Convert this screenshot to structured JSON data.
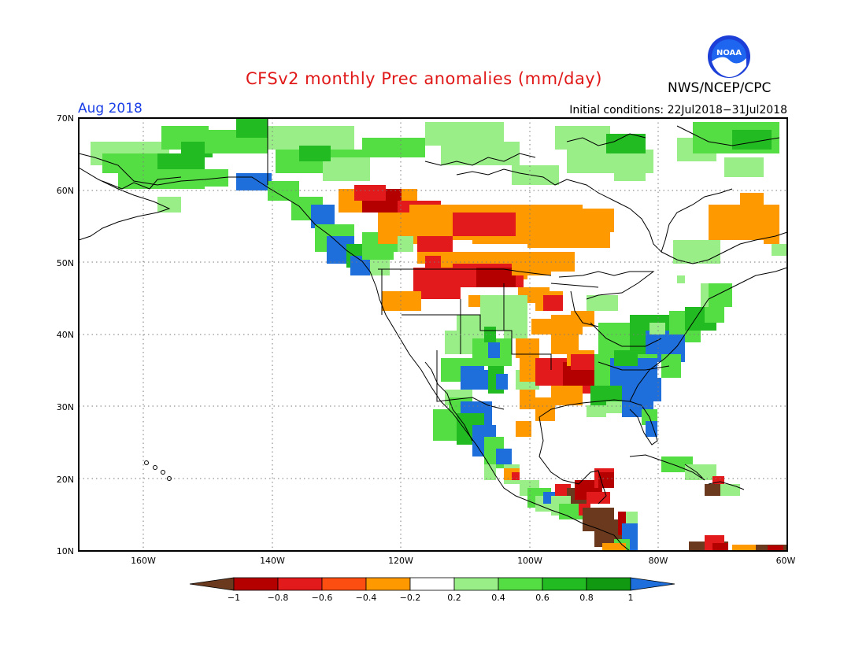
{
  "header": {
    "title": "CFSv2 monthly Prec anomalies (mm/day)",
    "agency": "NWS/NCEP/CPC",
    "month": "Aug 2018",
    "initial_conditions": "Initial conditions: 22Jul2018−31Jul2018",
    "logo_text": "NOAA"
  },
  "map": {
    "lat_labels": [
      "70N",
      "60N",
      "50N",
      "40N",
      "30N",
      "20N",
      "10N"
    ],
    "lon_labels": [
      "160W",
      "140W",
      "120W",
      "100W",
      "80W",
      "60W"
    ],
    "colors": {
      "ocean": "#ffffff",
      "coast": "#000000",
      "grid": "#7a7a7a",
      "brown": "#6b3a1e",
      "darkred": "#b50000",
      "red": "#e31a1c",
      "orangered": "#fc4e10",
      "orange": "#ff9900",
      "lightgreen": "#99ee88",
      "green": "#55dd44",
      "midgreen": "#22bb22",
      "darkgreen": "#119911",
      "blue": "#1e6fdc"
    }
  },
  "colorbar": {
    "labels": [
      "−1",
      "−0.8",
      "−0.6",
      "−0.4",
      "−0.2",
      "0.2",
      "0.4",
      "0.6",
      "0.8",
      "1"
    ],
    "colors": [
      "#6b3a1e",
      "#b50000",
      "#e31a1c",
      "#fc4e10",
      "#ff9900",
      "#ffffff",
      "#99ee88",
      "#55dd44",
      "#22bb22",
      "#119911",
      "#1e6fdc"
    ]
  }
}
